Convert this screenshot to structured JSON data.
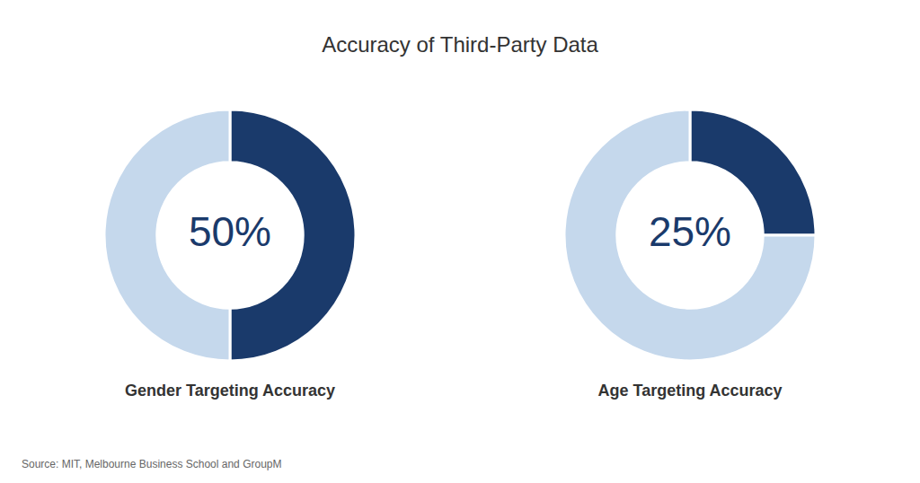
{
  "title": "Accuracy of Third-Party Data",
  "annotations": [
    "Source: MIT, Melbourne Business School and GroupM"
  ],
  "chart_data": [
    {
      "type": "donut",
      "title": "Gender Targeting Accuracy",
      "values": [
        50,
        50
      ],
      "value_labels": [
        "50%",
        null
      ],
      "data_labels": true,
      "colors": [
        "#1a3a6b",
        "#c5d8ec"
      ]
    },
    {
      "type": "donut",
      "title": "Age Targeting Accuracy",
      "values": [
        25,
        75
      ],
      "value_labels": [
        "25%",
        null
      ],
      "data_labels": true,
      "colors": [
        "#1a3a6b",
        "#c5d8ec"
      ]
    }
  ]
}
